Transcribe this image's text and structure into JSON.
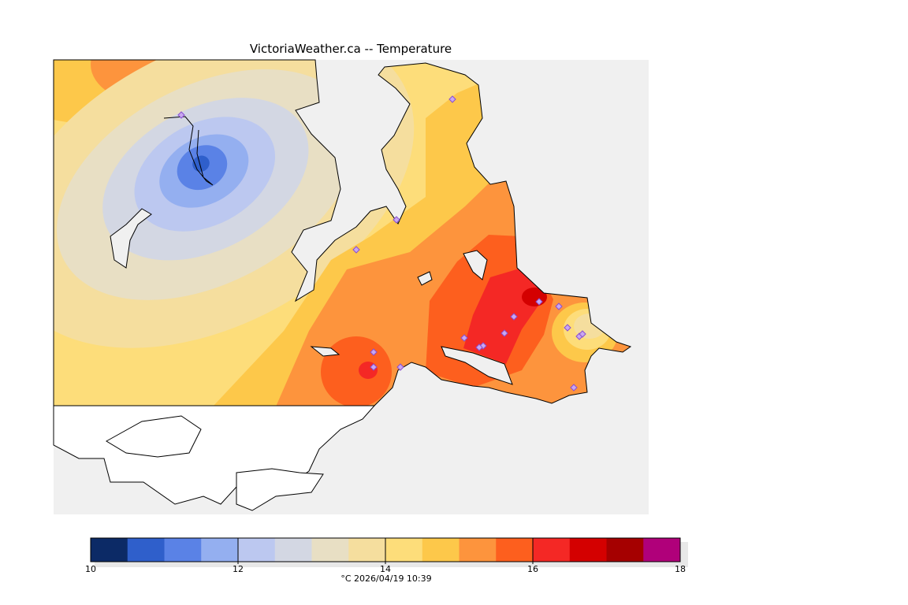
{
  "title": "VictoriaWeather.ca -- Temperature",
  "legend": {
    "ticks": [
      "10",
      "12",
      "14",
      "16",
      "18"
    ],
    "units_timestamp": "°C  2026/04/19 10:39",
    "colors": [
      "#0c2a66",
      "#2f5fcb",
      "#5a82e6",
      "#94aff0",
      "#bcc8f0",
      "#d3d7e3",
      "#e8dfc4",
      "#f5de9e",
      "#fddd7a",
      "#fdc84a",
      "#fd943d",
      "#fd5f1e",
      "#f42825",
      "#d40000",
      "#a50000",
      "#b0007a"
    ]
  },
  "colors": {
    "water": "#f0f0f0",
    "land_outside": "#ffffff",
    "coast": "#000000",
    "station": "#8a4fd0"
  }
}
